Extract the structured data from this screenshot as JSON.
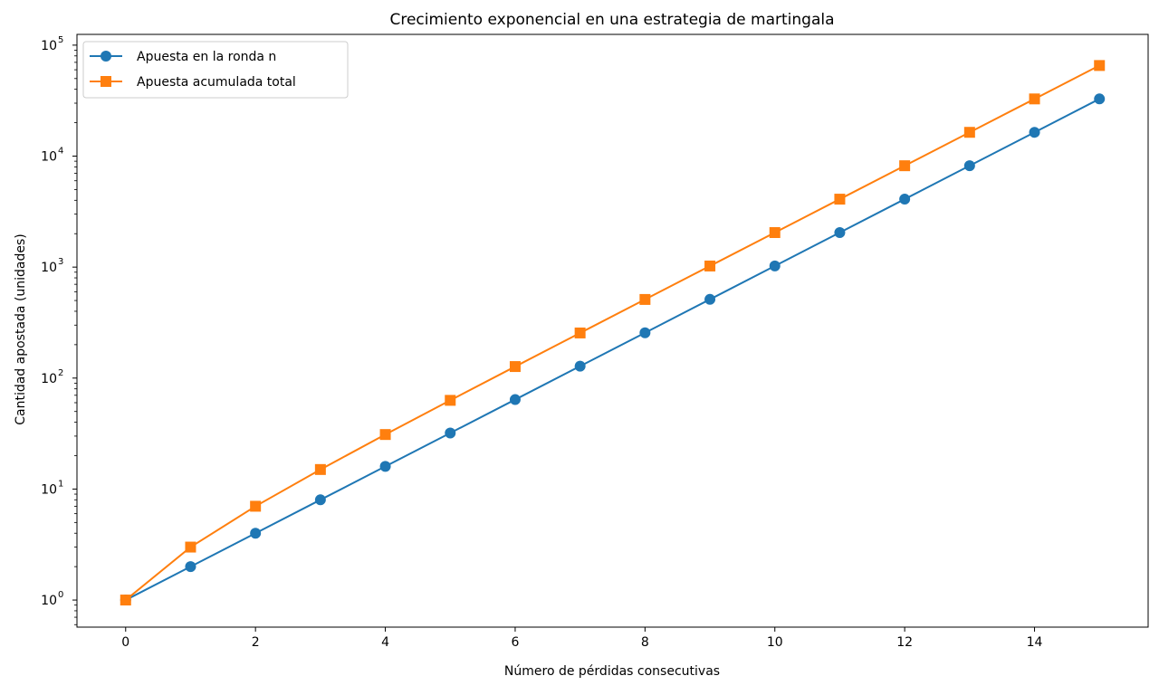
{
  "chart_data": {
    "type": "line",
    "title": "Crecimiento exponencial en una estrategia de martingala",
    "xlabel": "Número de pérdidas consecutivas",
    "ylabel": "Cantidad apostada (unidades)",
    "x": [
      0,
      1,
      2,
      3,
      4,
      5,
      6,
      7,
      8,
      9,
      10,
      11,
      12,
      13,
      14,
      15
    ],
    "xlim": [
      -0.75,
      15.75
    ],
    "ylim": [
      0.57,
      125000
    ],
    "yscale": "log",
    "xticks": [
      0,
      2,
      4,
      6,
      8,
      10,
      12,
      14
    ],
    "yticks": [
      1,
      10,
      100,
      1000,
      10000,
      100000
    ],
    "ytick_labels": [
      "10^0",
      "10^1",
      "10^2",
      "10^3",
      "10^4",
      "10^5"
    ],
    "grid": false,
    "legend": "top-left",
    "series": [
      {
        "name": "Apuesta en la ronda n",
        "color": "#1f77b4",
        "marker": "circle",
        "values": [
          1,
          2,
          4,
          8,
          16,
          32,
          64,
          128,
          256,
          512,
          1024,
          2048,
          4096,
          8192,
          16384,
          32768
        ]
      },
      {
        "name": "Apuesta acumulada total",
        "color": "#ff7f0e",
        "marker": "square",
        "values": [
          1,
          3,
          7,
          15,
          31,
          63,
          127,
          255,
          511,
          1023,
          2047,
          4095,
          8191,
          16383,
          32767,
          65535
        ]
      }
    ]
  }
}
